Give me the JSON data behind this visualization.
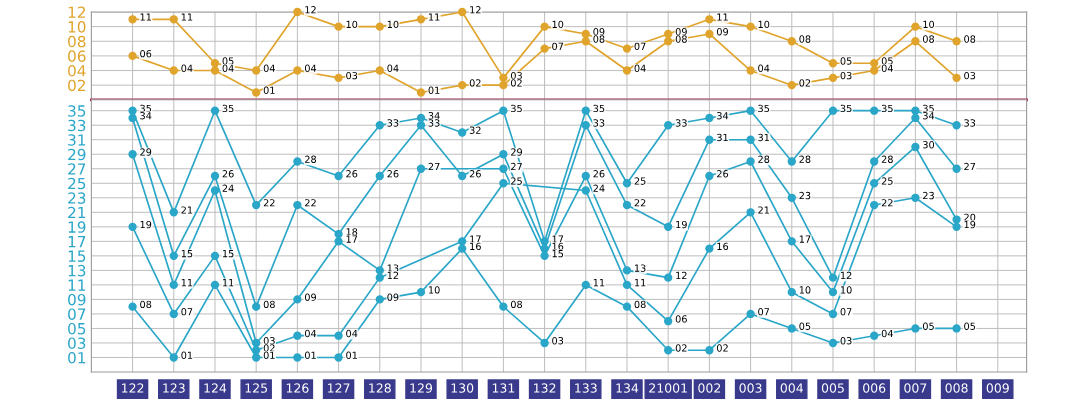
{
  "chart_data": [
    {
      "type": "line",
      "categories": [
        "122",
        "123",
        "124",
        "125",
        "126",
        "127",
        "128",
        "129",
        "130",
        "131",
        "132",
        "133",
        "134",
        "21001",
        "002",
        "003",
        "004",
        "005",
        "006",
        "007",
        "008",
        "009"
      ],
      "tick_labels": "y",
      "grid": true,
      "legend": false,
      "marker": "circle",
      "ylim": [
        0,
        12
      ],
      "yticks": [
        {
          "value": 2,
          "label": "02"
        },
        {
          "value": 4,
          "label": "04"
        },
        {
          "value": 6,
          "label": "06"
        },
        {
          "value": 8,
          "label": "08"
        },
        {
          "value": 10,
          "label": "10"
        },
        {
          "value": 12,
          "label": "12"
        }
      ],
      "series": [
        {
          "color": "#e0a42c",
          "values": [
            11,
            11,
            5,
            4,
            12,
            10,
            10,
            11,
            12,
            3,
            10,
            9,
            7,
            9,
            11,
            10,
            8,
            5,
            5,
            10,
            8,
            null
          ],
          "value_labels": [
            "11",
            "11",
            "05",
            "04",
            "12",
            "10",
            "10",
            "11",
            "12",
            "03",
            "10",
            "09",
            "07",
            "09",
            "11",
            "10",
            "08",
            "05",
            "05",
            "10",
            "08",
            null
          ]
        },
        {
          "color": "#e0a42c",
          "values": [
            6,
            4,
            4,
            1,
            4,
            3,
            4,
            1,
            2,
            2,
            7,
            8,
            4,
            8,
            9,
            4,
            2,
            3,
            4,
            8,
            3,
            null
          ],
          "value_labels": [
            "06",
            "04",
            "04",
            "01",
            "04",
            "03",
            "04",
            "01",
            "02",
            "02",
            "07",
            "08",
            "04",
            "08",
            "09",
            "04",
            "02",
            "03",
            "04",
            "08",
            "03",
            null
          ]
        }
      ]
    },
    {
      "type": "line",
      "categories": [
        "122",
        "123",
        "124",
        "125",
        "126",
        "127",
        "128",
        "129",
        "130",
        "131",
        "132",
        "133",
        "134",
        "21001",
        "002",
        "003",
        "004",
        "005",
        "006",
        "007",
        "008",
        "009"
      ],
      "grid": true,
      "legend": false,
      "marker": "circle",
      "ylim": [
        -1,
        36.5
      ],
      "yticks": [
        {
          "value": 1,
          "label": "01"
        },
        {
          "value": 3,
          "label": "03"
        },
        {
          "value": 5,
          "label": "05"
        },
        {
          "value": 7,
          "label": "07"
        },
        {
          "value": 9,
          "label": "09"
        },
        {
          "value": 11,
          "label": "11"
        },
        {
          "value": 13,
          "label": "13"
        },
        {
          "value": 15,
          "label": "15"
        },
        {
          "value": 17,
          "label": "17"
        },
        {
          "value": 19,
          "label": "19"
        },
        {
          "value": 21,
          "label": "21"
        },
        {
          "value": 23,
          "label": "23"
        },
        {
          "value": 25,
          "label": "25"
        },
        {
          "value": 27,
          "label": "27"
        },
        {
          "value": 29,
          "label": "29"
        },
        {
          "value": 31,
          "label": "31"
        },
        {
          "value": 33,
          "label": "33"
        },
        {
          "value": 35,
          "label": "35"
        }
      ],
      "series": [
        {
          "color": "#2aa6c8",
          "values": [
            35,
            21,
            35,
            22,
            28,
            26,
            33,
            34,
            32,
            35,
            17,
            35,
            25,
            33,
            34,
            35,
            28,
            35,
            35,
            35,
            33,
            null
          ],
          "value_labels": [
            "35",
            "21",
            "35",
            "22",
            "28",
            "26",
            "33",
            "34",
            "32",
            "35",
            "17",
            "35",
            "25",
            "33",
            "34",
            "35",
            "28",
            "35",
            "35",
            "35",
            "33",
            null
          ]
        },
        {
          "color": "#2aa6c8",
          "values": [
            34,
            15,
            26,
            8,
            22,
            18,
            26,
            33,
            26,
            29,
            16,
            33,
            22,
            19,
            31,
            31,
            23,
            12,
            28,
            34,
            27,
            null
          ],
          "value_labels": [
            "34",
            "15",
            "26",
            "08",
            "22",
            "18",
            "26",
            "33",
            "26",
            "29",
            "16",
            "33",
            "22",
            "19",
            "31",
            "31",
            "23",
            "12",
            "28",
            "34",
            "27",
            null
          ]
        },
        {
          "color": "#2aa6c8",
          "values": [
            29,
            11,
            24,
            3,
            9,
            17,
            13,
            27,
            null,
            27,
            15,
            26,
            13,
            12,
            26,
            28,
            17,
            10,
            25,
            30,
            20,
            null
          ],
          "value_labels": [
            "29",
            "11",
            "24",
            "03",
            "09",
            "17",
            "13",
            "27",
            null,
            "27",
            "15",
            "26",
            "13",
            "12",
            "26",
            "28",
            "17",
            "10",
            "25",
            "30",
            "20",
            null
          ]
        },
        {
          "color": "#2aa6c8",
          "values": [
            19,
            7,
            15,
            2,
            4,
            4,
            12,
            null,
            17,
            25,
            null,
            24,
            11,
            6,
            16,
            21,
            10,
            7,
            22,
            23,
            19,
            null
          ],
          "value_labels": [
            "19",
            "07",
            "15",
            "02",
            "04",
            "04",
            "12",
            null,
            "17",
            "25",
            null,
            "24",
            "11",
            "06",
            "16",
            "21",
            "10",
            "07",
            "22",
            "23",
            "19",
            null
          ]
        },
        {
          "color": "#2aa6c8",
          "values": [
            8,
            1,
            11,
            1,
            1,
            1,
            9,
            10,
            16,
            8,
            3,
            11,
            8,
            2,
            2,
            7,
            5,
            3,
            4,
            5,
            5,
            null
          ],
          "value_labels": [
            "08",
            "01",
            "11",
            "01",
            "01",
            "01",
            "09",
            "10",
            "16",
            "08",
            "03",
            "11",
            "08",
            "02",
            "02",
            "07",
            "05",
            "03",
            "04",
            "05",
            "05",
            null
          ]
        }
      ]
    }
  ]
}
